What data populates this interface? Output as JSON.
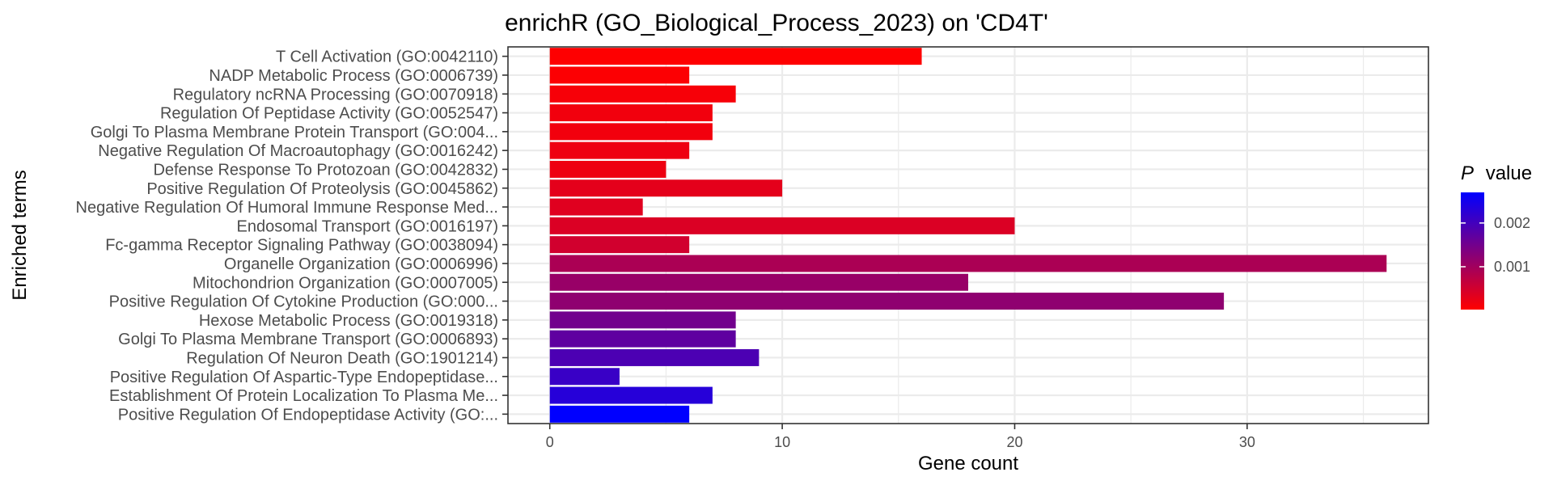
{
  "chart_data": {
    "type": "bar",
    "orientation": "horizontal",
    "title": "enrichR (GO_Biological_Process_2023) on 'CD4T'",
    "xlabel": "Gene count",
    "ylabel": "Enriched terms",
    "xlim": [
      -1.8,
      37.8
    ],
    "x_ticks": [
      0,
      10,
      20,
      30
    ],
    "grid": true,
    "legend": {
      "title_italic": "P",
      "title_rest": "value",
      "placement": "right",
      "colors": {
        "low": "#ff0000",
        "high": "#0000ff"
      },
      "range": [
        2e-05,
        0.0027
      ],
      "ticks": [
        0.001,
        0.002
      ],
      "tick_labels": [
        "0.001",
        "0.002"
      ]
    },
    "categories": [
      "T Cell Activation (GO:0042110)",
      "NADP Metabolic Process (GO:0006739)",
      "Regulatory ncRNA Processing (GO:0070918)",
      "Regulation Of Peptidase Activity (GO:0052547)",
      "Golgi To Plasma Membrane Protein Transport (GO:004...",
      "Negative Regulation Of Macroautophagy (GO:0016242)",
      "Defense Response To Protozoan (GO:0042832)",
      "Positive Regulation Of Proteolysis (GO:0045862)",
      "Negative Regulation Of Humoral Immune Response Med...",
      "Endosomal Transport (GO:0016197)",
      "Fc-gamma Receptor Signaling Pathway (GO:0038094)",
      "Organelle Organization (GO:0006996)",
      "Mitochondrion Organization (GO:0007005)",
      "Positive Regulation Of Cytokine Production (GO:000...",
      "Hexose Metabolic Process (GO:0019318)",
      "Golgi To Plasma Membrane Transport (GO:0006893)",
      "Regulation Of Neuron Death (GO:1901214)",
      "Positive Regulation Of Aspartic-Type Endopeptidase...",
      "Establishment Of Protein Localization To Plasma Me...",
      "Positive Regulation Of Endopeptidase Activity (GO:..."
    ],
    "values": [
      16,
      6,
      8,
      7,
      7,
      6,
      5,
      10,
      4,
      20,
      6,
      36,
      18,
      29,
      8,
      8,
      9,
      3,
      7,
      6
    ],
    "p_values": [
      3e-05,
      5e-05,
      0.0001,
      0.00016,
      0.00016,
      0.0002,
      0.0002,
      0.0003,
      0.00035,
      0.0004,
      0.0005,
      0.0009,
      0.0011,
      0.0012,
      0.0015,
      0.0017,
      0.0019,
      0.0021,
      0.0023,
      0.0027
    ]
  }
}
